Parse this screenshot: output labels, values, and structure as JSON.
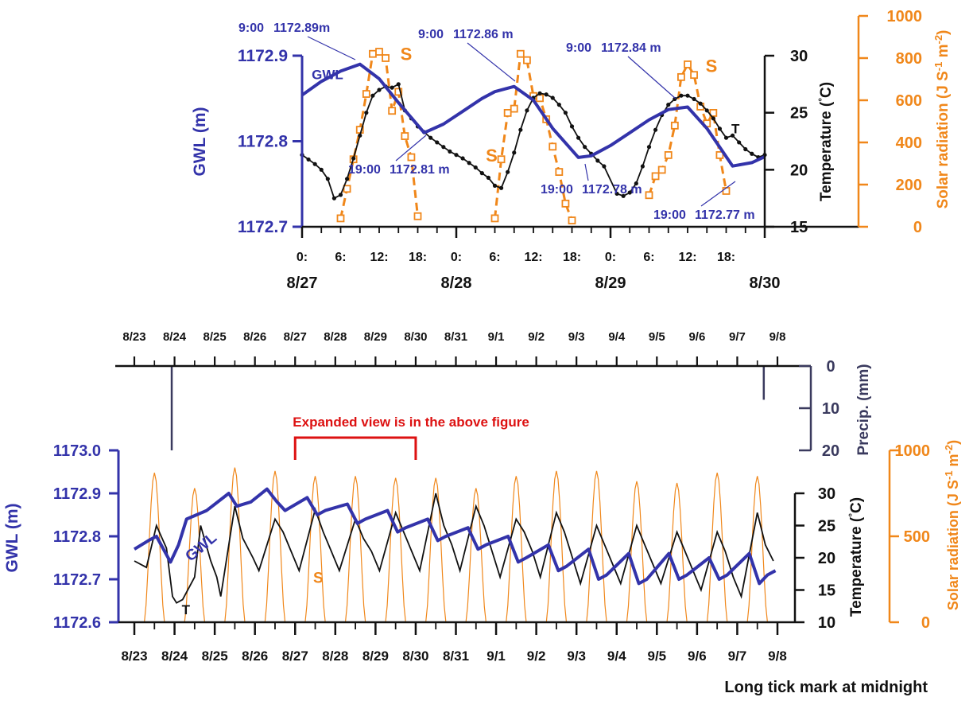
{
  "colors": {
    "gwl": "#3333aa",
    "temperature": "#111111",
    "solar": "#f0871a",
    "precip": "#3a3a5e",
    "annotation": "#dd1111"
  },
  "footer_note": "Long tick mark at midnight",
  "chart_data": [
    {
      "id": "expanded",
      "type": "line",
      "x_unit": "hours since 8/27 0:00",
      "x_range": [
        0,
        72
      ],
      "x_ticks": [
        {
          "x": 0,
          "label": "0:"
        },
        {
          "x": 6,
          "label": "6:"
        },
        {
          "x": 12,
          "label": "12:"
        },
        {
          "x": 18,
          "label": "18:"
        },
        {
          "x": 24,
          "label": "0:"
        },
        {
          "x": 30,
          "label": "6:"
        },
        {
          "x": 36,
          "label": "12:"
        },
        {
          "x": 42,
          "label": "18:"
        },
        {
          "x": 48,
          "label": "0:"
        },
        {
          "x": 54,
          "label": "6:"
        },
        {
          "x": 60,
          "label": "12:"
        },
        {
          "x": 66,
          "label": "18:"
        }
      ],
      "x_date_labels": [
        {
          "x": 0,
          "label": "8/27"
        },
        {
          "x": 24,
          "label": "8/28"
        },
        {
          "x": 48,
          "label": "8/29"
        },
        {
          "x": 72,
          "label": "8/30"
        }
      ],
      "left_axis": {
        "label": "GWL (m)",
        "range": [
          1172.7,
          1172.9
        ],
        "ticks": [
          "1172.7",
          "1172.8",
          "1172.9"
        ]
      },
      "right_axis_1": {
        "label": "Temperature (°C)",
        "range": [
          15,
          30
        ],
        "ticks": [
          "15",
          "20",
          "25",
          "30"
        ]
      },
      "right_axis_2": {
        "label": "Solar radiation (J S-1 m-2)",
        "range": [
          0,
          1000
        ],
        "ticks": [
          "0",
          "200",
          "400",
          "600",
          "800",
          "1000"
        ]
      },
      "series": [
        {
          "name": "GWL",
          "axis": "left",
          "x": [
            0,
            3,
            6,
            9,
            12,
            15,
            19,
            22,
            25,
            28,
            30,
            33,
            36,
            39,
            43,
            45,
            48,
            51,
            54,
            57,
            60,
            63,
            67,
            70,
            72
          ],
          "y": [
            1172.854,
            1172.87,
            1172.882,
            1172.89,
            1172.873,
            1172.845,
            1172.81,
            1172.82,
            1172.835,
            1172.85,
            1172.858,
            1172.864,
            1172.848,
            1172.815,
            1172.781,
            1172.783,
            1172.795,
            1172.81,
            1172.825,
            1172.837,
            1172.84,
            1172.815,
            1172.771,
            1172.775,
            1172.782
          ]
        },
        {
          "name": "T",
          "axis": "right_1",
          "x": [
            0,
            1,
            2,
            3,
            4,
            5,
            6,
            7,
            8,
            9,
            10,
            11,
            12,
            13,
            14,
            15,
            16,
            17,
            18,
            19,
            20,
            21,
            22,
            23,
            24,
            25,
            26,
            27,
            28,
            29,
            30,
            31,
            32,
            33,
            34,
            35,
            36,
            37,
            38,
            39,
            40,
            41,
            42,
            43,
            44,
            45,
            46,
            47,
            49,
            50,
            51,
            52,
            53,
            54,
            55,
            56,
            57,
            58,
            59,
            60,
            61,
            62,
            63,
            64,
            65,
            66,
            67,
            68,
            69,
            70,
            71,
            72
          ],
          "y": [
            21.3,
            20.9,
            20.5,
            20.0,
            19.2,
            17.5,
            17.8,
            19.2,
            21.0,
            23.0,
            25.0,
            26.5,
            27.0,
            27.3,
            27.2,
            27.5,
            25.2,
            24.5,
            23.8,
            23.3,
            22.8,
            22.4,
            22.0,
            21.6,
            21.3,
            21.0,
            20.6,
            20.2,
            19.7,
            19.3,
            18.6,
            18.4,
            19.8,
            21.5,
            23.5,
            25.2,
            26.3,
            26.7,
            26.6,
            26.3,
            25.7,
            25.0,
            23.8,
            22.8,
            22.0,
            21.4,
            20.8,
            20.3,
            17.9,
            17.7,
            18.0,
            18.8,
            20.3,
            22.0,
            23.5,
            24.8,
            25.7,
            26.2,
            26.5,
            26.5,
            26.2,
            25.8,
            25.2,
            24.5,
            23.6,
            22.8,
            23.0,
            22.4,
            21.8,
            21.4,
            21.1,
            21.3
          ]
        },
        {
          "name": "S",
          "axis": "right_2",
          "x": [
            6,
            7,
            8,
            9,
            10,
            11,
            12,
            13,
            14,
            15,
            16,
            17,
            18,
            30,
            31,
            32,
            33,
            34,
            35,
            36,
            37,
            38,
            39,
            40,
            41,
            42,
            54,
            55,
            56,
            57,
            58,
            59,
            60,
            61,
            62,
            63,
            64,
            65,
            66
          ],
          "y": [
            40,
            180,
            320,
            460,
            630,
            820,
            830,
            800,
            550,
            640,
            430,
            330,
            50,
            40,
            320,
            540,
            560,
            820,
            790,
            620,
            610,
            510,
            380,
            260,
            110,
            30,
            150,
            240,
            270,
            340,
            480,
            710,
            770,
            720,
            570,
            490,
            540,
            340,
            170
          ]
        }
      ],
      "series_labels": [
        "GWL",
        "S",
        "S",
        "S",
        "T"
      ],
      "annotations": [
        {
          "time": "9:00",
          "value": "1172.89m"
        },
        {
          "time": "19:00",
          "value": "1172.81 m"
        },
        {
          "time": "9:00",
          "value": "1172.86 m"
        },
        {
          "time": "19:00",
          "value": "1172.78 m"
        },
        {
          "time": "9:00",
          "value": "1172.84 m"
        },
        {
          "time": "19:00",
          "value": "1172.77 m"
        }
      ]
    },
    {
      "id": "full",
      "type": "line",
      "x_unit": "days since 8/23 0:00",
      "x_range": [
        0,
        16
      ],
      "x_dates": [
        "8/23",
        "8/24",
        "8/25",
        "8/26",
        "8/27",
        "8/28",
        "8/29",
        "8/30",
        "8/31",
        "9/1",
        "9/2",
        "9/3",
        "9/4",
        "9/5",
        "9/6",
        "9/7",
        "9/8"
      ],
      "left_axis": {
        "label": "GWL (m)",
        "range": [
          1172.6,
          1173.0
        ],
        "ticks": [
          "1172.6",
          "1172.7",
          "1172.8",
          "1172.9",
          "1173.0"
        ]
      },
      "right_axis_1": {
        "label": "Temperature (°C)",
        "range": [
          10,
          30
        ],
        "ticks": [
          "10",
          "15",
          "20",
          "25",
          "30"
        ]
      },
      "right_axis_2": {
        "label": "Solar radiation (J S-1 m-2)",
        "range": [
          0,
          1000
        ],
        "ticks": [
          "0",
          "500",
          "1000"
        ]
      },
      "precip_axis": {
        "label": "Precip. (mm)",
        "range": [
          0,
          20
        ],
        "ticks": [
          "0",
          "10",
          "20"
        ]
      },
      "precipitation": [
        {
          "day": 0.93,
          "mm": 20
        },
        {
          "day": 15.66,
          "mm": 8
        }
      ],
      "series": [
        {
          "name": "GWL",
          "axis": "left",
          "x": [
            0,
            0.35,
            0.55,
            0.9,
            1.1,
            1.3,
            1.55,
            1.8,
            2.35,
            2.55,
            2.9,
            3.3,
            3.55,
            3.75,
            4.3,
            4.55,
            4.75,
            5.3,
            5.55,
            5.75,
            6.3,
            6.55,
            6.75,
            7.3,
            7.55,
            7.75,
            8.3,
            8.55,
            8.75,
            9.3,
            9.55,
            9.75,
            10.3,
            10.55,
            10.75,
            11.3,
            11.55,
            11.75,
            12.3,
            12.55,
            12.75,
            13.3,
            13.55,
            13.75,
            14.3,
            14.55,
            14.75,
            15.3,
            15.55,
            15.75,
            15.95
          ],
          "y": [
            1172.77,
            1172.79,
            1172.8,
            1172.74,
            1172.78,
            1172.84,
            1172.85,
            1172.86,
            1172.9,
            1172.87,
            1172.88,
            1172.91,
            1172.88,
            1172.86,
            1172.89,
            1172.85,
            1172.86,
            1172.875,
            1172.83,
            1172.84,
            1172.86,
            1172.81,
            1172.82,
            1172.84,
            1172.79,
            1172.8,
            1172.82,
            1172.77,
            1172.78,
            1172.8,
            1172.74,
            1172.75,
            1172.78,
            1172.72,
            1172.73,
            1172.77,
            1172.7,
            1172.71,
            1172.76,
            1172.69,
            1172.7,
            1172.76,
            1172.7,
            1172.71,
            1172.75,
            1172.7,
            1172.71,
            1172.76,
            1172.69,
            1172.71,
            1172.72
          ]
        },
        {
          "name": "T",
          "axis": "right_1",
          "x": [
            0,
            0.3,
            0.55,
            0.8,
            0.95,
            1.05,
            1.2,
            1.5,
            1.65,
            1.9,
            2.05,
            2.15,
            2.5,
            2.7,
            2.95,
            3.1,
            3.5,
            3.7,
            3.9,
            4.1,
            4.5,
            4.7,
            4.9,
            5.1,
            5.5,
            5.7,
            5.9,
            6.1,
            6.5,
            6.7,
            6.9,
            7.1,
            7.5,
            7.7,
            7.9,
            8.1,
            8.5,
            8.7,
            8.9,
            9.1,
            9.5,
            9.7,
            9.9,
            10.1,
            10.5,
            10.7,
            10.9,
            11.1,
            11.5,
            11.7,
            11.9,
            12.1,
            12.5,
            12.7,
            12.9,
            13.1,
            13.5,
            13.7,
            13.9,
            14.1,
            14.5,
            14.7,
            14.9,
            15.1,
            15.5,
            15.7,
            15.9
          ],
          "y": [
            19.5,
            18.5,
            25.0,
            21.5,
            14.0,
            13.0,
            13.5,
            17.0,
            25.0,
            19.5,
            17.0,
            14.0,
            28.0,
            23.0,
            20.0,
            18.0,
            26.0,
            24.0,
            21.0,
            18.0,
            27.5,
            24.0,
            21.0,
            18.0,
            26.0,
            23.0,
            21.0,
            18.0,
            27.0,
            24.0,
            21.0,
            18.0,
            30.0,
            25.0,
            22.0,
            18.0,
            28.0,
            25.0,
            21.0,
            17.0,
            26.0,
            24.0,
            21.0,
            17.0,
            27.0,
            24.0,
            20.0,
            16.0,
            25.0,
            22.0,
            19.0,
            16.0,
            25.0,
            22.0,
            19.0,
            16.0,
            24.0,
            21.0,
            18.0,
            15.0,
            24.0,
            21.0,
            17.0,
            14.0,
            27.0,
            22.0,
            19.5
          ]
        },
        {
          "name": "S",
          "axis": "right_2",
          "peak_day_offset": 0.5,
          "daily_peaks": [
            870,
            780,
            900,
            880,
            850,
            850,
            840,
            840,
            780,
            850,
            880,
            880,
            820,
            810,
            870,
            850
          ]
        }
      ],
      "series_labels": [
        "GWL",
        "T",
        "S"
      ],
      "annotation": {
        "text": "Expanded view is in the above figure",
        "from": "8/27",
        "to": "8/30"
      }
    }
  ]
}
